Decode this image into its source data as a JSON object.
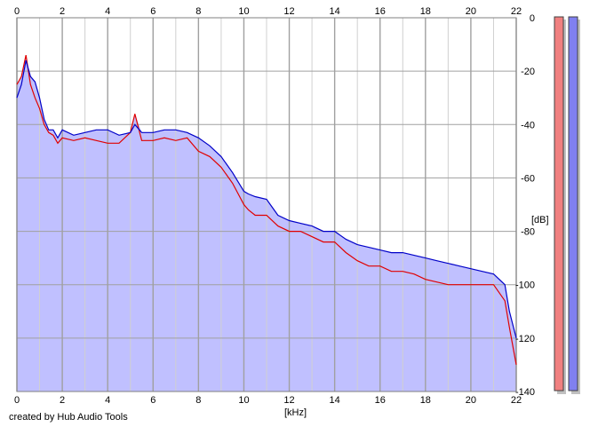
{
  "credit": "created by Hub Audio Tools",
  "chart_data": {
    "type": "line",
    "title": "",
    "xlabel": "[kHz]",
    "ylabel": "[dB]",
    "xlim": [
      0,
      22
    ],
    "ylim": [
      -140,
      0
    ],
    "x_ticks": [
      "0",
      "2",
      "4",
      "6",
      "8",
      "10",
      "12",
      "14",
      "16",
      "18",
      "20",
      "22"
    ],
    "y_ticks": [
      "0",
      "-20",
      "-40",
      "-60",
      "-80",
      "-100",
      "-120",
      "-140"
    ],
    "grid": true,
    "colors": {
      "fill": "#c0c0ff",
      "series_1": "#e00000",
      "series_2": "#0000c8",
      "grid_major": "#a0a0a0",
      "grid_minor": "#d0d0d0",
      "meter_1": "#f08080",
      "meter_2": "#8080f0"
    },
    "x": [
      0,
      0.2,
      0.4,
      0.6,
      0.8,
      1,
      1.2,
      1.4,
      1.6,
      1.8,
      2,
      2.5,
      3,
      3.5,
      4,
      4.5,
      5,
      5.2,
      5.5,
      6,
      6.5,
      7,
      7.5,
      8,
      8.5,
      9,
      9.5,
      10,
      10.2,
      10.5,
      11,
      11.5,
      12,
      12.5,
      13,
      13.5,
      14,
      14.5,
      15,
      15.5,
      16,
      16.5,
      17,
      17.5,
      18,
      18.5,
      19,
      19.5,
      20,
      20.5,
      21,
      21.5,
      21.7,
      22
    ],
    "series": [
      {
        "values": [
          -25,
          -22,
          -14,
          -25,
          -30,
          -34,
          -40,
          -43,
          -44,
          -47,
          -45,
          -46,
          -45,
          -46,
          -47,
          -47,
          -43,
          -36,
          -46,
          -46,
          -45,
          -46,
          -45,
          -50,
          -52,
          -56,
          -62,
          -70,
          -72,
          -74,
          -74,
          -78,
          -80,
          -80,
          -82,
          -84,
          -84,
          -88,
          -91,
          -93,
          -93,
          -95,
          -95,
          -96,
          -98,
          -99,
          -100,
          -100,
          -100,
          -100,
          -100,
          -106,
          -116,
          -130
        ]
      },
      {
        "values": [
          -30,
          -25,
          -16,
          -22,
          -24,
          -30,
          -38,
          -42,
          -42,
          -45,
          -42,
          -44,
          -43,
          -42,
          -42,
          -44,
          -43,
          -40,
          -43,
          -43,
          -42,
          -42,
          -43,
          -45,
          -48,
          -52,
          -58,
          -65,
          -66,
          -67,
          -68,
          -74,
          -76,
          -77,
          -78,
          -80,
          -80,
          -83,
          -85,
          -86,
          -87,
          -88,
          -88,
          -89,
          -90,
          -91,
          -92,
          -93,
          -94,
          -95,
          -96,
          -100,
          -110,
          -120
        ]
      }
    ]
  }
}
